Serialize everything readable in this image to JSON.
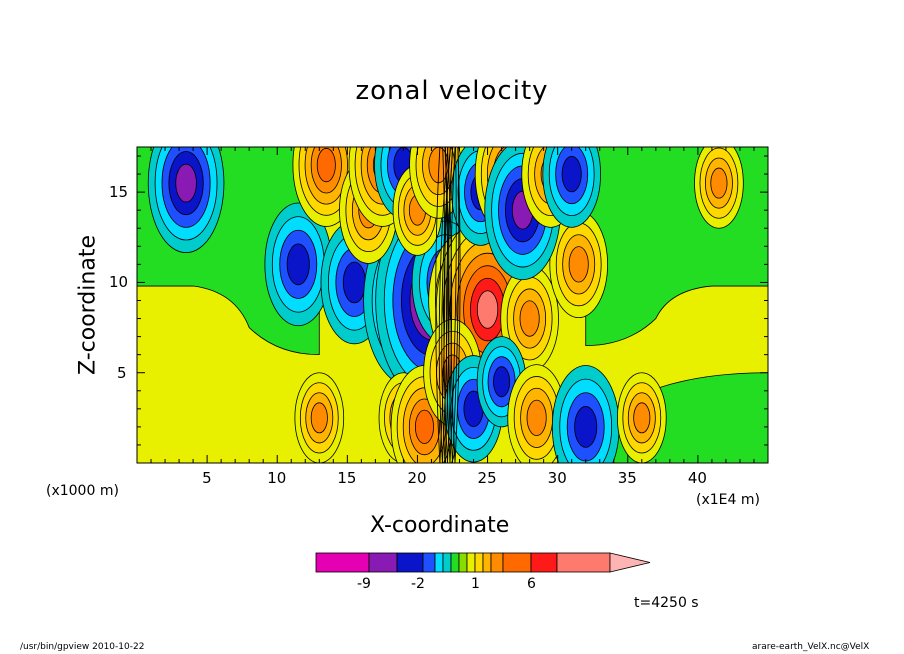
{
  "footer": {
    "left": "/usr/bin/gpview   2010-10-22",
    "right": "arare-earth_VelX.nc@VelX"
  },
  "time_label": "t=4250 s",
  "chart_data": {
    "type": "heatmap",
    "title": "zonal velocity",
    "xlabel": "X-coordinate",
    "ylabel": "Z-coordinate",
    "x_unit_label": "(x1E4 m)",
    "y_unit_label": "(x1000 m)",
    "xlim": [
      0,
      45
    ],
    "ylim": [
      0,
      17.5
    ],
    "xticks": [
      5,
      10,
      15,
      20,
      25,
      30,
      35,
      40
    ],
    "yticks": [
      5,
      10,
      15
    ],
    "grid": false,
    "colorbar": {
      "levels": [
        -13,
        -9,
        -5,
        -2,
        -1.5,
        -1,
        -0.5,
        0,
        0.5,
        1,
        1.5,
        2,
        4,
        6,
        8,
        11
      ],
      "colors": [
        "#e600b4",
        "#8a1ab4",
        "#0a14c8",
        "#1e50ff",
        "#00ddff",
        "#00cccc",
        "#22dd22",
        "#88dd00",
        "#e8f000",
        "#ffd800",
        "#ffb400",
        "#ff8c00",
        "#ff6a00",
        "#ff1a1a",
        "#ff7a6e",
        "#ffb4b4"
      ],
      "labeled_ticks": [
        -9,
        -2,
        1,
        6
      ],
      "extend": "max"
    },
    "features": [
      {
        "x": 3.5,
        "z": 15.5,
        "value": -5
      },
      {
        "x": 11.5,
        "z": 11.0,
        "value": -4
      },
      {
        "x": 15.5,
        "z": 10.0,
        "value": -4
      },
      {
        "x": 19.5,
        "z": 9.0,
        "value": -7
      },
      {
        "x": 21.0,
        "z": 9.0,
        "value": -9
      },
      {
        "x": 22.0,
        "z": 10.0,
        "value": -4
      },
      {
        "x": 23.5,
        "z": 9.0,
        "value": 5
      },
      {
        "x": 25.0,
        "z": 8.5,
        "value": 8
      },
      {
        "x": 28.0,
        "z": 8.0,
        "value": 3
      },
      {
        "x": 31.5,
        "z": 11.0,
        "value": 3
      },
      {
        "x": 41.5,
        "z": 15.5,
        "value": 2
      },
      {
        "x": 13.5,
        "z": 16.5,
        "value": 4
      },
      {
        "x": 16.5,
        "z": 14.0,
        "value": 3
      },
      {
        "x": 17.5,
        "z": 16.5,
        "value": 4
      },
      {
        "x": 19.0,
        "z": 16.5,
        "value": -3
      },
      {
        "x": 20.0,
        "z": 14.0,
        "value": 2
      },
      {
        "x": 21.5,
        "z": 16.5,
        "value": 3
      },
      {
        "x": 24.5,
        "z": 15.0,
        "value": -3
      },
      {
        "x": 26.5,
        "z": 16.0,
        "value": 4
      },
      {
        "x": 27.5,
        "z": 14.0,
        "value": -5
      },
      {
        "x": 29.5,
        "z": 16.0,
        "value": 3
      },
      {
        "x": 31.0,
        "z": 16.0,
        "value": -3
      },
      {
        "x": 13.0,
        "z": 2.5,
        "value": 2
      },
      {
        "x": 19.0,
        "z": 2.5,
        "value": 2
      },
      {
        "x": 20.5,
        "z": 2.0,
        "value": 4
      },
      {
        "x": 22.5,
        "z": 5.0,
        "value": 3
      },
      {
        "x": 24.0,
        "z": 3.0,
        "value": -3
      },
      {
        "x": 26.0,
        "z": 4.5,
        "value": -2
      },
      {
        "x": 28.5,
        "z": 2.5,
        "value": 3
      },
      {
        "x": 32.0,
        "z": 2.0,
        "value": -4
      },
      {
        "x": 36.0,
        "z": 2.5,
        "value": 2
      }
    ]
  }
}
